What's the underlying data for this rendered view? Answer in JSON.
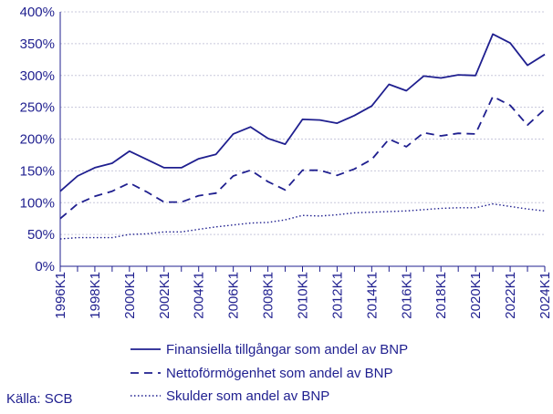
{
  "chart_data": {
    "type": "line",
    "x": [
      "1996K1",
      "1997K1",
      "1998K1",
      "1999K1",
      "2000K1",
      "2001K1",
      "2002K1",
      "2003K1",
      "2004K1",
      "2005K1",
      "2006K1",
      "2007K1",
      "2008K1",
      "2009K1",
      "2010K1",
      "2011K1",
      "2012K1",
      "2013K1",
      "2014K1",
      "2015K1",
      "2016K1",
      "2017K1",
      "2018K1",
      "2019K1",
      "2020K1",
      "2021K1",
      "2022K1",
      "2023K1",
      "2024K1"
    ],
    "x_tick_labels": [
      "1996K1",
      "1998K1",
      "2000K1",
      "2002K1",
      "2004K1",
      "2006K1",
      "2008K1",
      "2010K1",
      "2012K1",
      "2014K1",
      "2016K1",
      "2018K1",
      "2020K1",
      "2022K1",
      "2024K1"
    ],
    "y_ticks": [
      "0%",
      "50%",
      "100%",
      "150%",
      "200%",
      "250%",
      "300%",
      "350%",
      "400%"
    ],
    "ylim": [
      0,
      400
    ],
    "grid": "horizontal",
    "legend_position": "bottom",
    "series": [
      {
        "name": "Finansiella tillgångar som andel av BNP",
        "style": "solid",
        "values": [
          118,
          142,
          155,
          162,
          181,
          168,
          155,
          155,
          169,
          176,
          208,
          219,
          201,
          192,
          231,
          230,
          225,
          237,
          252,
          286,
          276,
          299,
          296,
          301,
          300,
          365,
          351,
          316,
          333
        ]
      },
      {
        "name": "Nettoförmögenhet som andel av BNP",
        "style": "dashed",
        "values": [
          75,
          98,
          110,
          118,
          131,
          117,
          101,
          101,
          111,
          115,
          142,
          151,
          133,
          120,
          151,
          151,
          143,
          153,
          168,
          200,
          188,
          210,
          205,
          209,
          208,
          267,
          253,
          222,
          247
        ]
      },
      {
        "name": "Skulder som andel av BNP",
        "style": "dotted",
        "values": [
          43,
          45,
          45,
          45,
          50,
          51,
          54,
          54,
          58,
          62,
          65,
          68,
          69,
          73,
          80,
          79,
          81,
          84,
          85,
          86,
          87,
          89,
          91,
          92,
          92,
          98,
          94,
          90,
          87
        ]
      }
    ],
    "colors": {
      "line": "#1f1f8f",
      "grid": "#c8c8dc",
      "axis": "#1f1f8f"
    }
  },
  "source": "Källa: SCB"
}
